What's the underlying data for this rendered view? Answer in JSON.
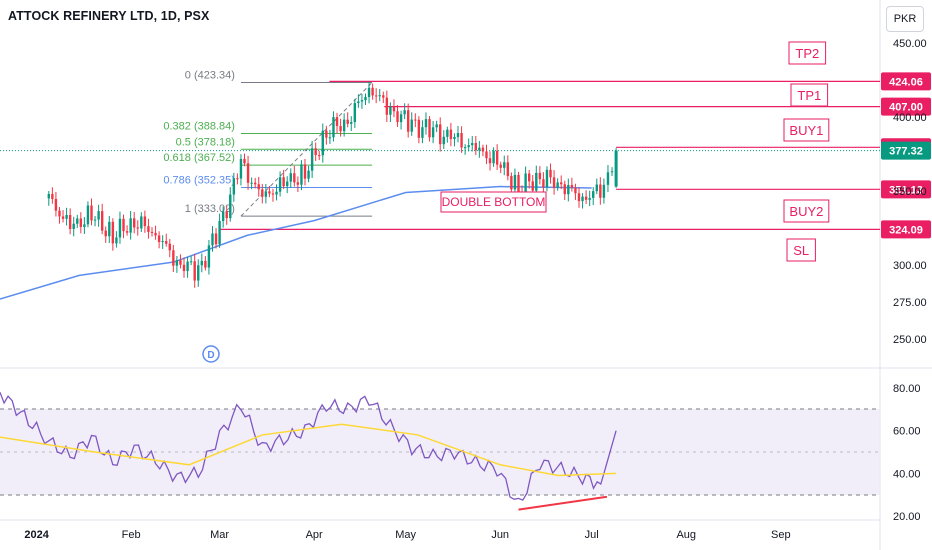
{
  "header": {
    "title": "ATTOCK REFINERY LTD, 1D, PSX",
    "currency": "PKR"
  },
  "chart_data": [
    {
      "type": "candlestick",
      "title": "ATTOCK REFINERY LTD, 1D, PSX",
      "ylim": [
        225,
        460
      ],
      "y_ticks": [
        "450.00",
        "400.00",
        "350.00",
        "300.00",
        "275.00",
        "250.00"
      ],
      "x_ticks": [
        "2024",
        "Feb",
        "Mar",
        "Apr",
        "May",
        "Jun",
        "Jul",
        "Aug",
        "Sep"
      ],
      "close_series": [
        {
          "x": "2024-01-05",
          "y": 345
        },
        {
          "x": "2024-01-12",
          "y": 325
        },
        {
          "x": "2024-01-19",
          "y": 334
        },
        {
          "x": "2024-01-26",
          "y": 320
        },
        {
          "x": "2024-02-02",
          "y": 330
        },
        {
          "x": "2024-02-09",
          "y": 322
        },
        {
          "x": "2024-02-16",
          "y": 302
        },
        {
          "x": "2024-02-23",
          "y": 296
        },
        {
          "x": "2024-03-01",
          "y": 325
        },
        {
          "x": "2024-03-08",
          "y": 368
        },
        {
          "x": "2024-03-15",
          "y": 345
        },
        {
          "x": "2024-03-22",
          "y": 355
        },
        {
          "x": "2024-03-29",
          "y": 362
        },
        {
          "x": "2024-04-05",
          "y": 390
        },
        {
          "x": "2024-04-12",
          "y": 398
        },
        {
          "x": "2024-04-19",
          "y": 420
        },
        {
          "x": "2024-04-26",
          "y": 405
        },
        {
          "x": "2024-05-03",
          "y": 395
        },
        {
          "x": "2024-05-10",
          "y": 390
        },
        {
          "x": "2024-05-17",
          "y": 385
        },
        {
          "x": "2024-05-24",
          "y": 378
        },
        {
          "x": "2024-05-31",
          "y": 370
        },
        {
          "x": "2024-06-07",
          "y": 352
        },
        {
          "x": "2024-06-14",
          "y": 360
        },
        {
          "x": "2024-06-21",
          "y": 355
        },
        {
          "x": "2024-06-28",
          "y": 345
        },
        {
          "x": "2024-07-05",
          "y": 352
        },
        {
          "x": "2024-07-09",
          "y": 377.32
        }
      ],
      "moving_average": [
        {
          "x": "2023-12-20",
          "y": 277
        },
        {
          "x": "2024-01-15",
          "y": 293
        },
        {
          "x": "2024-02-15",
          "y": 302
        },
        {
          "x": "2024-03-10",
          "y": 320
        },
        {
          "x": "2024-04-01",
          "y": 330
        },
        {
          "x": "2024-05-01",
          "y": 349
        },
        {
          "x": "2024-06-01",
          "y": 353
        },
        {
          "x": "2024-07-01",
          "y": 352
        }
      ],
      "fibonacci": [
        {
          "ratio": "0",
          "label": "0 (423.34)",
          "value": 423.34
        },
        {
          "ratio": "0.382",
          "label": "0.382 (388.84)",
          "value": 388.84
        },
        {
          "ratio": "0.5",
          "label": "0.5 (378.18)",
          "value": 378.18
        },
        {
          "ratio": "0.618",
          "label": "0.618 (367.52)",
          "value": 367.52
        },
        {
          "ratio": "0.786",
          "label": "0.786 (352.35)",
          "value": 352.35
        },
        {
          "ratio": "1",
          "label": "1 (333.02)",
          "value": 333.02
        }
      ],
      "levels": [
        {
          "name": "TP2",
          "value": null
        },
        {
          "name": "TP1",
          "value": 407.0
        },
        {
          "name": "",
          "value": 424.06
        },
        {
          "name": "BUY1",
          "value": 379.52
        },
        {
          "name": "",
          "value": 351.13
        },
        {
          "name": "BUY2",
          "value": 324.09
        },
        {
          "name": "SL",
          "value": null
        }
      ],
      "price_labels": [
        "424.06",
        "407.00",
        "379.52",
        "377.32",
        "351.13",
        "324.09"
      ],
      "current_price": 377.32,
      "annotations": [
        "DOUBLE BOTTOM",
        "TP2",
        "TP1",
        "BUY1",
        "BUY2",
        "SL",
        "D"
      ],
      "colors": {
        "up": "#089981",
        "down": "#f23645",
        "ma": "#5b8def",
        "level": "#e91e63",
        "fib": "#4caf50"
      }
    },
    {
      "type": "line",
      "name": "RSI",
      "ylim": [
        20,
        85
      ],
      "y_ticks": [
        "80.00",
        "60.00",
        "40.00",
        "20.00"
      ],
      "band": [
        30,
        70
      ],
      "midline": 50,
      "rsi": [
        {
          "x": "2023-12-20",
          "y": 78
        },
        {
          "x": "2024-01-05",
          "y": 55
        },
        {
          "x": "2024-01-12",
          "y": 48
        },
        {
          "x": "2024-01-19",
          "y": 57
        },
        {
          "x": "2024-01-26",
          "y": 45
        },
        {
          "x": "2024-02-02",
          "y": 52
        },
        {
          "x": "2024-02-09",
          "y": 46
        },
        {
          "x": "2024-02-16",
          "y": 38
        },
        {
          "x": "2024-02-23",
          "y": 40
        },
        {
          "x": "2024-03-01",
          "y": 58
        },
        {
          "x": "2024-03-08",
          "y": 72
        },
        {
          "x": "2024-03-15",
          "y": 52
        },
        {
          "x": "2024-03-22",
          "y": 56
        },
        {
          "x": "2024-03-29",
          "y": 60
        },
        {
          "x": "2024-04-05",
          "y": 72
        },
        {
          "x": "2024-04-12",
          "y": 70
        },
        {
          "x": "2024-04-19",
          "y": 75
        },
        {
          "x": "2024-04-26",
          "y": 62
        },
        {
          "x": "2024-05-03",
          "y": 52
        },
        {
          "x": "2024-05-10",
          "y": 48
        },
        {
          "x": "2024-05-17",
          "y": 50
        },
        {
          "x": "2024-05-24",
          "y": 45
        },
        {
          "x": "2024-05-31",
          "y": 42
        },
        {
          "x": "2024-06-07",
          "y": 25
        },
        {
          "x": "2024-06-14",
          "y": 45
        },
        {
          "x": "2024-06-21",
          "y": 42
        },
        {
          "x": "2024-06-28",
          "y": 38
        },
        {
          "x": "2024-07-04",
          "y": 35
        },
        {
          "x": "2024-07-09",
          "y": 60
        }
      ],
      "rsi_ma": [
        {
          "x": "2023-12-20",
          "y": 57
        },
        {
          "x": "2024-01-20",
          "y": 50
        },
        {
          "x": "2024-02-20",
          "y": 44
        },
        {
          "x": "2024-03-15",
          "y": 58
        },
        {
          "x": "2024-04-10",
          "y": 63
        },
        {
          "x": "2024-05-05",
          "y": 58
        },
        {
          "x": "2024-06-01",
          "y": 44
        },
        {
          "x": "2024-06-20",
          "y": 39
        },
        {
          "x": "2024-07-09",
          "y": 40
        }
      ],
      "colors": {
        "rsi": "#7e57c2",
        "rsi_ma": "#fdd835",
        "band": "#ede7f6",
        "divergence": "#f23645"
      }
    }
  ]
}
